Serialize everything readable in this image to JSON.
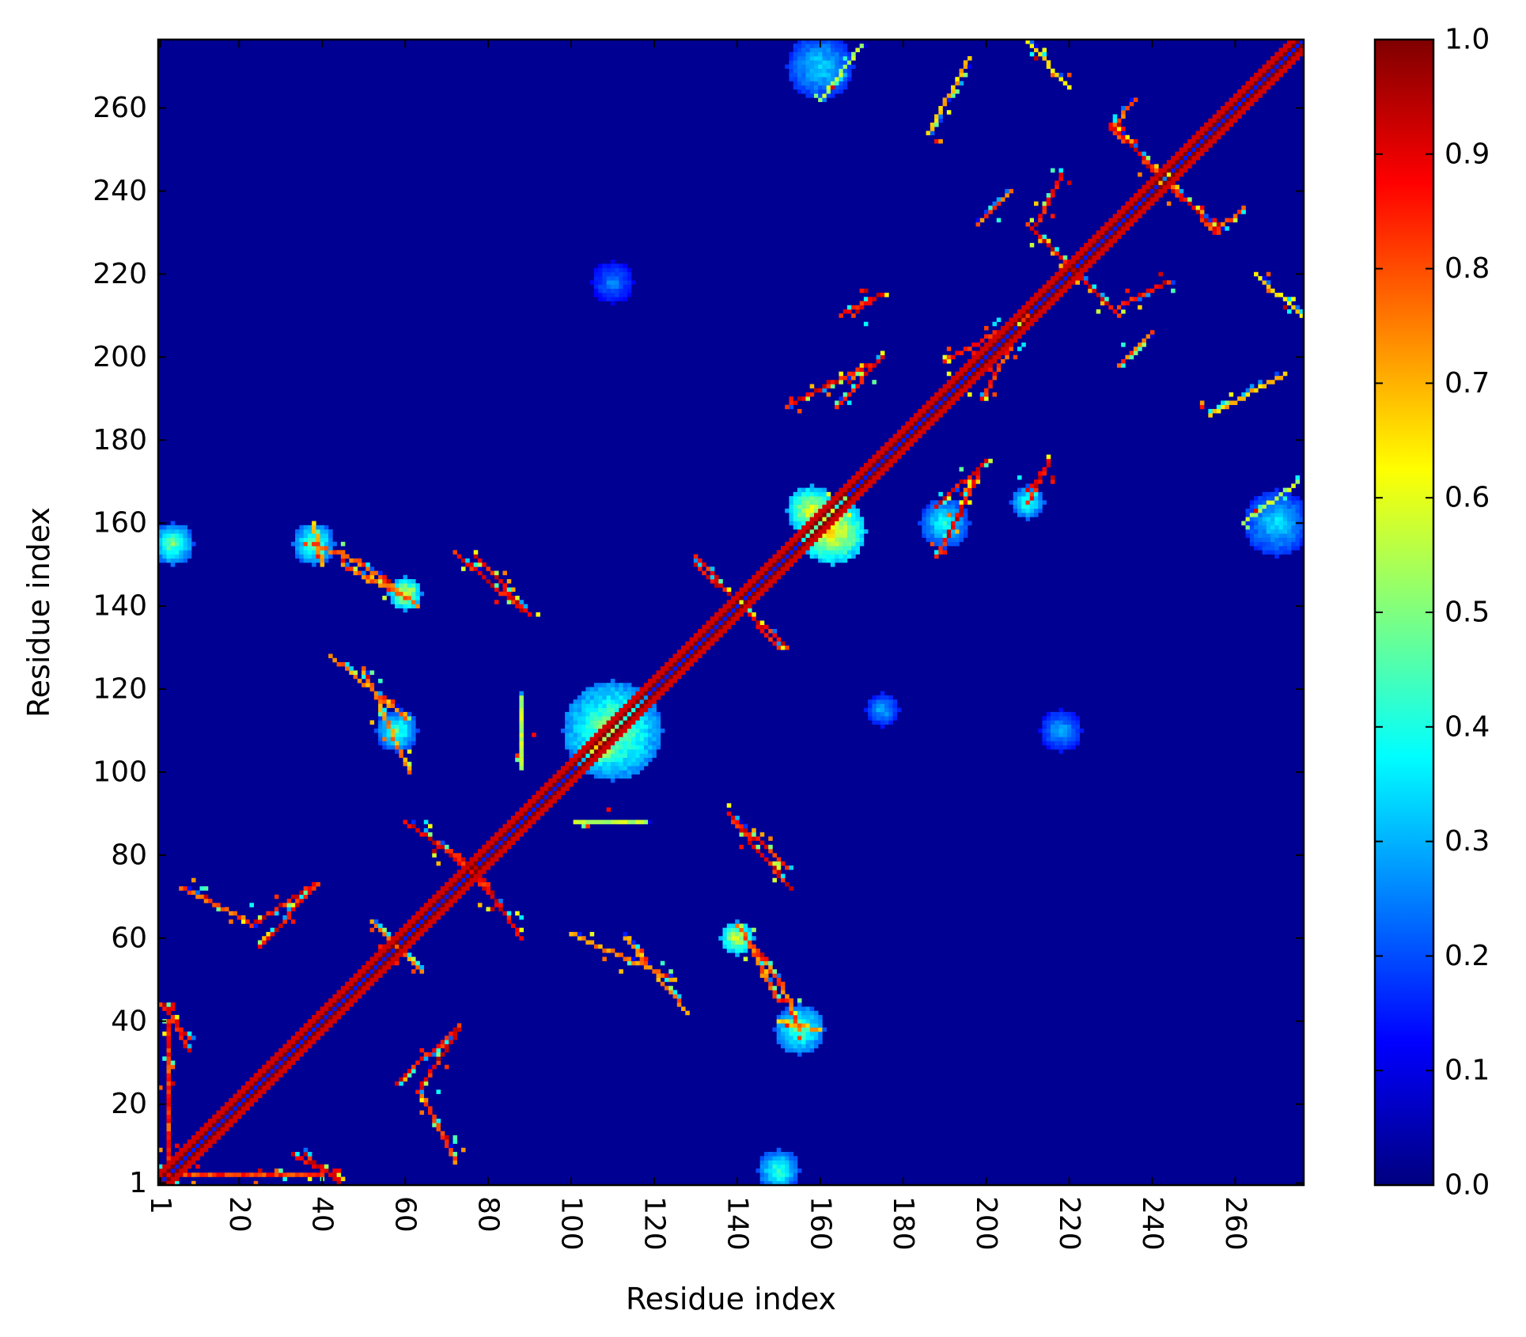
{
  "chart_data": {
    "type": "heatmap",
    "title": "",
    "xlabel": "Residue index",
    "ylabel": "Residue index",
    "n_residues": 276,
    "xlim": [
      1,
      276
    ],
    "ylim": [
      1,
      276
    ],
    "x_ticks": [
      1,
      20,
      40,
      60,
      80,
      100,
      120,
      140,
      160,
      180,
      200,
      220,
      240,
      260
    ],
    "y_ticks": [
      1,
      20,
      40,
      60,
      80,
      100,
      120,
      140,
      160,
      180,
      200,
      220,
      240,
      260
    ],
    "tick_labels": [
      "1",
      "20",
      "40",
      "60",
      "80",
      "100",
      "120",
      "140",
      "160",
      "180",
      "200",
      "220",
      "240",
      "260"
    ],
    "x_tick_rotation": "vertical",
    "colormap": "jet",
    "colorbar": {
      "range": [
        0.0,
        1.0
      ],
      "ticks": [
        0.0,
        0.1,
        0.2,
        0.3,
        0.4,
        0.5,
        0.6,
        0.7,
        0.8,
        0.9,
        1.0
      ],
      "tick_labels": [
        "0.0",
        "0.1",
        "0.2",
        "0.3",
        "0.4",
        "0.5",
        "0.6",
        "0.7",
        "0.8",
        "0.9",
        "1.0"
      ],
      "stops": [
        "#00007f",
        "#0000ff",
        "#007fff",
        "#00ffff",
        "#7fff7f",
        "#ffff00",
        "#ff7f00",
        "#ff0000",
        "#7f0000"
      ]
    },
    "background_value": 0.02,
    "diagonal": {
      "band_value": 1.0,
      "band_width": 3
    },
    "contact_features": [
      {
        "kind": "line",
        "from": [
          1,
          44
        ],
        "to": [
          8,
          36
        ],
        "value": 0.95
      },
      {
        "kind": "line",
        "from": [
          1,
          3
        ],
        "to": [
          40,
          3
        ],
        "value": 0.9
      },
      {
        "kind": "line",
        "from": [
          6,
          72
        ],
        "to": [
          22,
          64
        ],
        "value": 0.85
      },
      {
        "kind": "line",
        "from": [
          23,
          63
        ],
        "to": [
          38,
          73
        ],
        "value": 0.95
      },
      {
        "kind": "line",
        "from": [
          33,
          8
        ],
        "to": [
          44,
          2
        ],
        "value": 0.95
      },
      {
        "kind": "line",
        "from": [
          58,
          25
        ],
        "to": [
          72,
          38
        ],
        "value": 0.95
      },
      {
        "kind": "line",
        "from": [
          52,
          64
        ],
        "to": [
          63,
          53
        ],
        "value": 0.8
      },
      {
        "kind": "line",
        "from": [
          60,
          88
        ],
        "to": [
          78,
          76
        ],
        "value": 0.95
      },
      {
        "kind": "line",
        "from": [
          76,
          76
        ],
        "to": [
          87,
          62
        ],
        "value": 0.95
      },
      {
        "kind": "line",
        "from": [
          72,
          153
        ],
        "to": [
          88,
          139
        ],
        "value": 0.95
      },
      {
        "kind": "line",
        "from": [
          130,
          152
        ],
        "to": [
          150,
          130
        ],
        "value": 0.95
      },
      {
        "kind": "line",
        "from": [
          138,
          90
        ],
        "to": [
          152,
          77
        ],
        "value": 0.95
      },
      {
        "kind": "line",
        "from": [
          101,
          88
        ],
        "to": [
          118,
          88
        ],
        "value": 0.6
      },
      {
        "kind": "line",
        "from": [
          100,
          61
        ],
        "to": [
          125,
          50
        ],
        "value": 0.8
      },
      {
        "kind": "line",
        "from": [
          140,
          63
        ],
        "to": [
          150,
          50
        ],
        "value": 0.85
      },
      {
        "kind": "line",
        "from": [
          150,
          40
        ],
        "to": [
          160,
          38
        ],
        "value": 0.75
      },
      {
        "kind": "line",
        "from": [
          38,
          155
        ],
        "to": [
          50,
          150
        ],
        "value": 0.85
      },
      {
        "kind": "line",
        "from": [
          45,
          150
        ],
        "to": [
          62,
          141
        ],
        "value": 0.85
      },
      {
        "kind": "line",
        "from": [
          42,
          128
        ],
        "to": [
          60,
          113
        ],
        "value": 0.8
      },
      {
        "kind": "line",
        "from": [
          153,
          155
        ],
        "to": [
          165,
          166
        ],
        "value": 0.9
      },
      {
        "kind": "line",
        "from": [
          152,
          188
        ],
        "to": [
          172,
          198
        ],
        "value": 0.95
      },
      {
        "kind": "line",
        "from": [
          165,
          210
        ],
        "to": [
          175,
          215
        ],
        "value": 0.95
      },
      {
        "kind": "line",
        "from": [
          188,
          164
        ],
        "to": [
          200,
          175
        ],
        "value": 0.95
      },
      {
        "kind": "line",
        "from": [
          210,
          168
        ],
        "to": [
          215,
          174
        ],
        "value": 0.95
      },
      {
        "kind": "line",
        "from": [
          190,
          199
        ],
        "to": [
          210,
          210
        ],
        "value": 0.9
      },
      {
        "kind": "line",
        "from": [
          210,
          232
        ],
        "to": [
          230,
          212
        ],
        "value": 0.95
      },
      {
        "kind": "line",
        "from": [
          230,
          255
        ],
        "to": [
          245,
          242
        ],
        "value": 0.9
      },
      {
        "kind": "line",
        "from": [
          232,
          212
        ],
        "to": [
          244,
          218
        ],
        "value": 0.95
      },
      {
        "kind": "line",
        "from": [
          232,
          198
        ],
        "to": [
          240,
          206
        ],
        "value": 0.85
      },
      {
        "kind": "line",
        "from": [
          240,
          245
        ],
        "to": [
          256,
          230
        ],
        "value": 0.95
      },
      {
        "kind": "line",
        "from": [
          255,
          230
        ],
        "to": [
          262,
          236
        ],
        "value": 0.85
      },
      {
        "kind": "line",
        "from": [
          265,
          220
        ],
        "to": [
          276,
          210
        ],
        "value": 0.7
      },
      {
        "kind": "line",
        "from": [
          186,
          254
        ],
        "to": [
          196,
          272
        ],
        "value": 0.75
      },
      {
        "kind": "line",
        "from": [
          160,
          262
        ],
        "to": [
          170,
          275
        ],
        "value": 0.6
      },
      {
        "kind": "blob",
        "center": [
          110,
          110
        ],
        "size": 12,
        "value": 0.6
      },
      {
        "kind": "blob",
        "center": [
          107,
          106
        ],
        "size": 4,
        "value": 0.9
      },
      {
        "kind": "blob",
        "center": [
          163,
          158
        ],
        "size": 8,
        "value": 0.75
      },
      {
        "kind": "blob",
        "center": [
          158,
          163
        ],
        "size": 6,
        "value": 0.7
      },
      {
        "kind": "blob",
        "center": [
          155,
          38
        ],
        "size": 6,
        "value": 0.55
      },
      {
        "kind": "blob",
        "center": [
          38,
          155
        ],
        "size": 5,
        "value": 0.55
      },
      {
        "kind": "blob",
        "center": [
          4,
          155
        ],
        "size": 5,
        "value": 0.55
      },
      {
        "kind": "blob",
        "center": [
          150,
          4
        ],
        "size": 5,
        "value": 0.5
      },
      {
        "kind": "blob",
        "center": [
          160,
          270
        ],
        "size": 8,
        "value": 0.4
      },
      {
        "kind": "blob",
        "center": [
          270,
          160
        ],
        "size": 8,
        "value": 0.4
      },
      {
        "kind": "blob",
        "center": [
          218,
          110
        ],
        "size": 5,
        "value": 0.35
      },
      {
        "kind": "blob",
        "center": [
          175,
          115
        ],
        "size": 4,
        "value": 0.35
      },
      {
        "kind": "blob",
        "center": [
          110,
          218
        ],
        "size": 5,
        "value": 0.3
      },
      {
        "kind": "blob",
        "center": [
          58,
          110
        ],
        "size": 5,
        "value": 0.5
      },
      {
        "kind": "blob",
        "center": [
          60,
          143
        ],
        "size": 4,
        "value": 0.7
      },
      {
        "kind": "blob",
        "center": [
          140,
          60
        ],
        "size": 4,
        "value": 0.7
      },
      {
        "kind": "blob",
        "center": [
          190,
          160
        ],
        "size": 6,
        "value": 0.45
      },
      {
        "kind": "blob",
        "center": [
          210,
          165
        ],
        "size": 4,
        "value": 0.5
      }
    ]
  }
}
